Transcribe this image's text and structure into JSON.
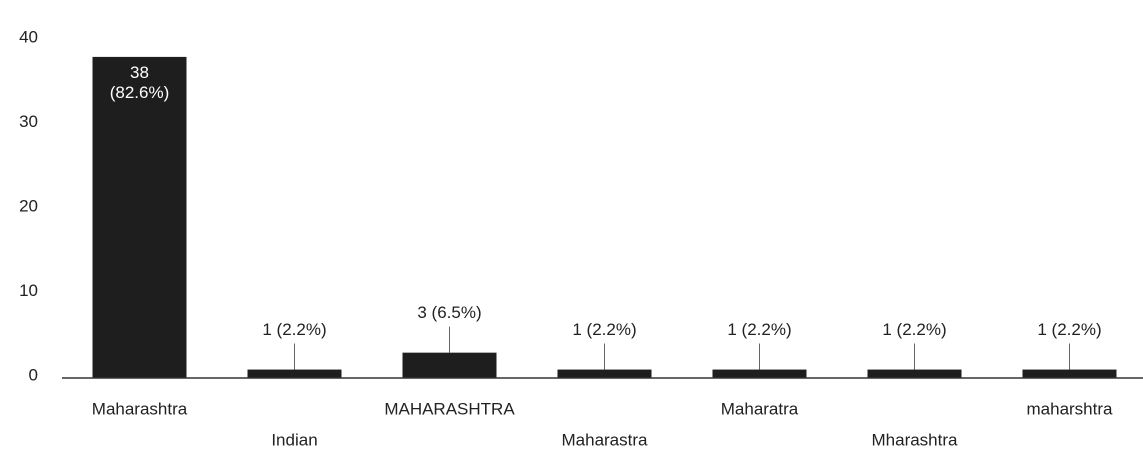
{
  "chart_data": {
    "type": "bar",
    "categories": [
      "Maharashtra",
      "Indian",
      "MAHARASHTRA",
      "Maharastra",
      "Maharatra",
      "Mharashtra",
      "maharshtra"
    ],
    "values": [
      38,
      1,
      3,
      1,
      1,
      1,
      1
    ],
    "value_labels": [
      "38 (82.6%)",
      "1 (2.2%)",
      "3 (6.5%)",
      "1 (2.2%)",
      "1 (2.2%)",
      "1 (2.2%)",
      "1 (2.2%)"
    ],
    "color": "#1e1e1e",
    "ylim": [
      0,
      40
    ],
    "yticks": [
      0,
      10,
      20,
      30,
      40
    ],
    "grid": false
  }
}
